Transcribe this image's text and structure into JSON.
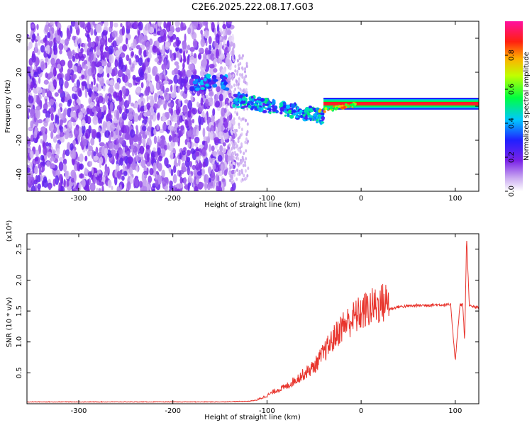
{
  "title": "C2E6.2025.222.08.17.G03",
  "chart_data": [
    {
      "type": "heatmap",
      "xlabel": "Height of straight line (km)",
      "ylabel": "Frequency (Hz)",
      "xlim": [
        -355,
        125
      ],
      "ylim": [
        -50,
        50
      ],
      "x_ticks": [
        -300,
        -200,
        -100,
        0,
        100
      ],
      "y_ticks": [
        -40,
        -20,
        0,
        20,
        40
      ],
      "x_tick_labels": [
        "-300",
        "-200",
        "-100",
        "0",
        "100"
      ],
      "y_tick_labels": [
        "-40",
        "-20",
        "0",
        "20",
        "40"
      ],
      "grid": false,
      "colorbar": {
        "label": "Normalized spectral amplitude",
        "range": [
          0,
          1
        ],
        "ticks": [
          0.0,
          0.2,
          0.4,
          0.6,
          0.8
        ],
        "tick_labels": [
          "0.0",
          "0.2",
          "0.4",
          "0.6",
          "0.8"
        ],
        "colormap": "rainbow (white, purple, blue, cyan, green, yellow, orange, red, magenta)"
      },
      "regions": [
        {
          "x_range": [
            -355,
            -135
          ],
          "freq_range": [
            -50,
            50
          ],
          "amplitude": "low (0.05-0.2), diffuse noise"
        },
        {
          "x_range": [
            -180,
            -140
          ],
          "freq_range": [
            10,
            18
          ],
          "amplitude": "0.2-0.4"
        },
        {
          "x_range": [
            -135,
            -40
          ],
          "freq_range": [
            -10,
            8
          ],
          "amplitude": "0.2-0.5, descending trace"
        },
        {
          "x_range": [
            -40,
            125
          ],
          "freq_range": [
            0,
            3
          ],
          "amplitude": "0.8-1.0, narrow line near 1 Hz"
        }
      ]
    },
    {
      "type": "line",
      "xlabel": "Height of straight line (km)",
      "ylabel": "SNR (10 * v/v)",
      "y_scale_label": "(x10⁴)",
      "xlim": [
        -355,
        125
      ],
      "ylim": [
        0,
        2.75
      ],
      "x_ticks": [
        -300,
        -200,
        -100,
        0,
        100
      ],
      "y_ticks": [
        0.5,
        1.0,
        1.5,
        2.0,
        2.5
      ],
      "x_tick_labels": [
        "-300",
        "-200",
        "-100",
        "0",
        "100"
      ],
      "y_tick_labels": [
        "0.5",
        "1.0",
        "1.5",
        "2.0",
        "2.5"
      ],
      "grid": false,
      "series_color": "#e8342c",
      "series": [
        {
          "x": [
            -355,
            -300,
            -250,
            -200,
            -150,
            -120,
            -110,
            -100,
            -90,
            -80,
            -70,
            -60,
            -50,
            -40,
            -30,
            -20,
            -10,
            0,
            10,
            20,
            30,
            40,
            60,
            80,
            90,
            95,
            100,
            105,
            108,
            110,
            112,
            115,
            125
          ],
          "y": [
            0.03,
            0.03,
            0.03,
            0.03,
            0.03,
            0.04,
            0.06,
            0.12,
            0.2,
            0.25,
            0.35,
            0.45,
            0.55,
            0.75,
            0.95,
            1.15,
            1.25,
            1.35,
            1.42,
            1.48,
            1.53,
            1.57,
            1.59,
            1.6,
            1.6,
            1.6,
            0.7,
            1.6,
            1.6,
            1.0,
            2.7,
            1.58,
            1.55
          ]
        }
      ]
    }
  ]
}
